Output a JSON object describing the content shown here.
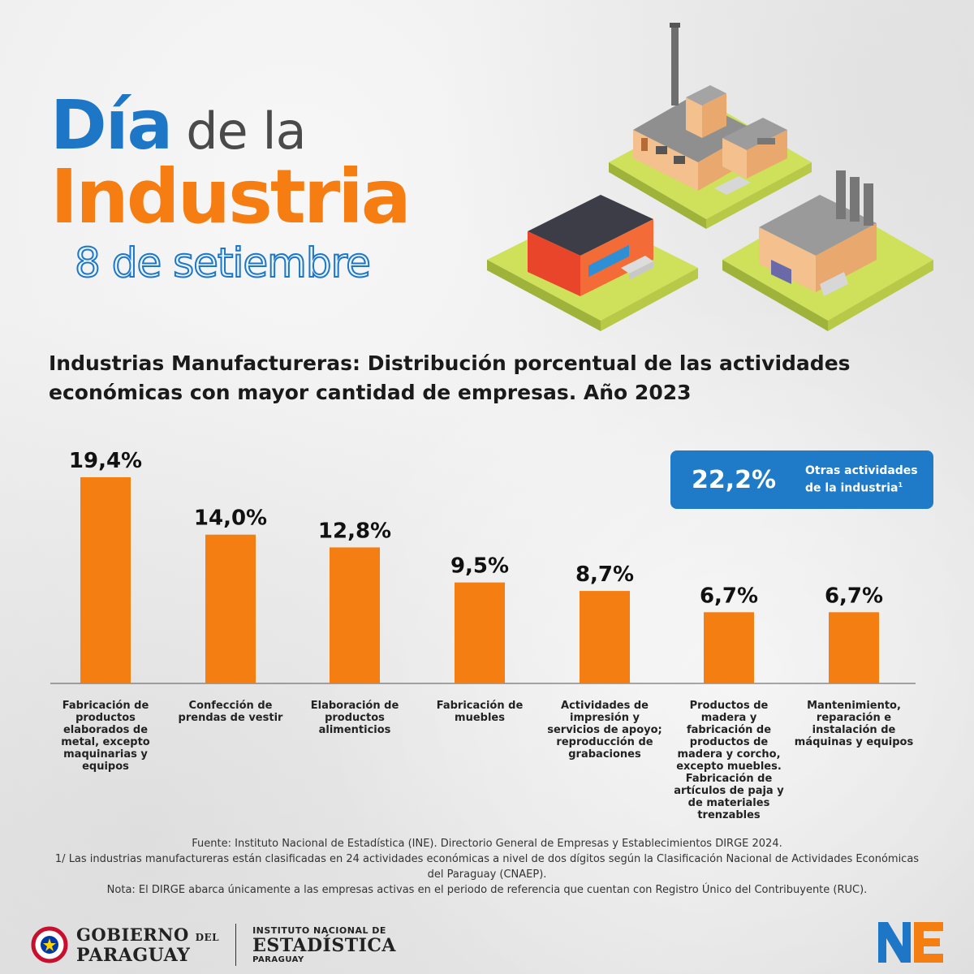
{
  "header": {
    "dia": "Día",
    "dela": "de la",
    "industria": "Industria",
    "fecha": "8 de setiembre"
  },
  "colors": {
    "blue": "#1d76c6",
    "orange": "#f57e12",
    "gray_text": "#4a4a4a"
  },
  "illustration": {
    "icons": [
      "factory-large-icon",
      "factory-small-icon",
      "shop-building-icon"
    ]
  },
  "chart_title": "Industrias Manufactureras: Distribución porcentual de las actividades económicas con mayor cantidad de empresas. Año 2023",
  "callout": {
    "value": "22,2%",
    "label": "Otras actividades de la industria",
    "footnote": "1"
  },
  "chart_data": {
    "type": "bar",
    "title": "Industrias Manufactureras: Distribución porcentual de las actividades económicas con mayor cantidad de empresas. Año 2023",
    "categories": [
      "Fabricación de productos elaborados de metal, excepto maquinarias y equipos",
      "Confección de prendas de vestir",
      "Elaboración de productos alimenticios",
      "Fabricación de muebles",
      "Actividades de impresión y servicios de apoyo; reproducción de grabaciones",
      "Productos de madera y fabricación de productos de madera y corcho, excepto muebles. Fabricación de artículos de paja y de materiales trenzables",
      "Mantenimiento, reparación e instalación de máquinas y equipos"
    ],
    "values": [
      19.4,
      14.0,
      12.8,
      9.5,
      8.7,
      6.7,
      6.7
    ],
    "value_labels": [
      "19,4%",
      "14,0%",
      "12,8%",
      "9,5%",
      "8,7%",
      "6,7%",
      "6,7%"
    ],
    "ylim": [
      0,
      19.4
    ],
    "grid": false,
    "bar_color": "#f57e12"
  },
  "notes": {
    "source": "Fuente: Instituto Nacional de Estadística (INE). Directorio General de Empresas y Establecimientos DIRGE 2024.",
    "footnote1": "1/ Las industrias manufactureras están clasificadas en 24 actividades económicas a nivel de dos dígitos según la Clasificación Nacional de Actividades Económicas del Paraguay (CNAEP).",
    "nota": "Nota: El DIRGE abarca únicamente a las empresas activas en el periodo de referencia que cuentan con Registro Único del Contribuyente (RUC)."
  },
  "footer": {
    "gov_line1": "GOBIERNO",
    "gov_del": "DEL",
    "gov_line2": "PARAGUAY",
    "ine_line1": "INSTITUTO NACIONAL DE",
    "ine_line2": "ESTADÍSTICA",
    "ine_line3": "PARAGUAY",
    "ne_logo_text": "NE"
  }
}
